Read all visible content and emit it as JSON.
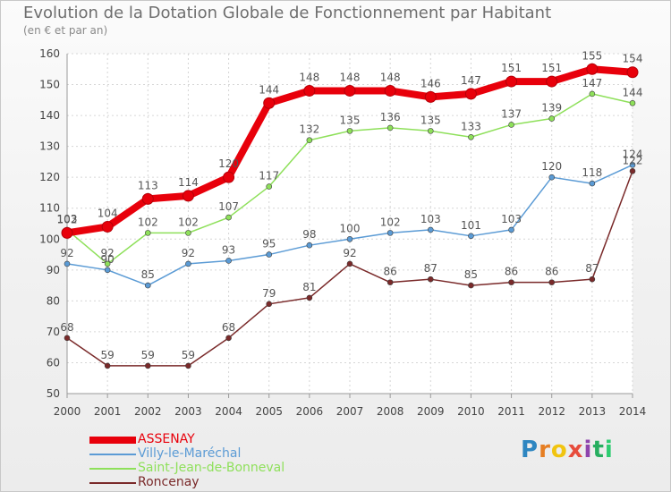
{
  "title": "Evolution de la Dotation Globale de Fonctionnement par Habitant",
  "subtitle": "(en € et par an)",
  "logo": {
    "letters": [
      {
        "ch": "P",
        "color": "#2e86c1"
      },
      {
        "ch": "r",
        "color": "#e67e22"
      },
      {
        "ch": "o",
        "color": "#f1c40f"
      },
      {
        "ch": "x",
        "color": "#e74c3c"
      },
      {
        "ch": "i",
        "color": "#8e44ad"
      },
      {
        "ch": "t",
        "color": "#27ae60"
      },
      {
        "ch": "i",
        "color": "#2ecc71"
      }
    ]
  },
  "chart_data": {
    "type": "line",
    "x": [
      2000,
      2001,
      2002,
      2003,
      2004,
      2005,
      2006,
      2007,
      2008,
      2009,
      2010,
      2011,
      2012,
      2013,
      2014
    ],
    "ylim": [
      50,
      160
    ],
    "yticks": [
      50,
      60,
      70,
      80,
      90,
      100,
      110,
      120,
      130,
      140,
      150,
      160
    ],
    "grid": true,
    "legend_position": "bottom-left",
    "series": [
      {
        "name": "ASSENAY",
        "color": "#e8000b",
        "values": [
          102,
          104,
          113,
          114,
          120,
          144,
          148,
          148,
          148,
          146,
          147,
          151,
          151,
          155,
          154
        ]
      },
      {
        "name": "Villy-le-Maréchal",
        "color": "#5b9bd5",
        "values": [
          92,
          90,
          85,
          92,
          93,
          95,
          98,
          100,
          102,
          103,
          101,
          103,
          120,
          118,
          124
        ]
      },
      {
        "name": "Saint-Jean-de-Bonneval",
        "color": "#8ee05a",
        "values": [
          103,
          92,
          102,
          102,
          107,
          117,
          132,
          135,
          136,
          135,
          133,
          137,
          139,
          147,
          144
        ]
      },
      {
        "name": "Roncenay",
        "color": "#7a2a2a",
        "values": [
          68,
          59,
          59,
          59,
          68,
          79,
          81,
          92,
          86,
          87,
          85,
          86,
          86,
          87,
          122
        ]
      }
    ]
  }
}
